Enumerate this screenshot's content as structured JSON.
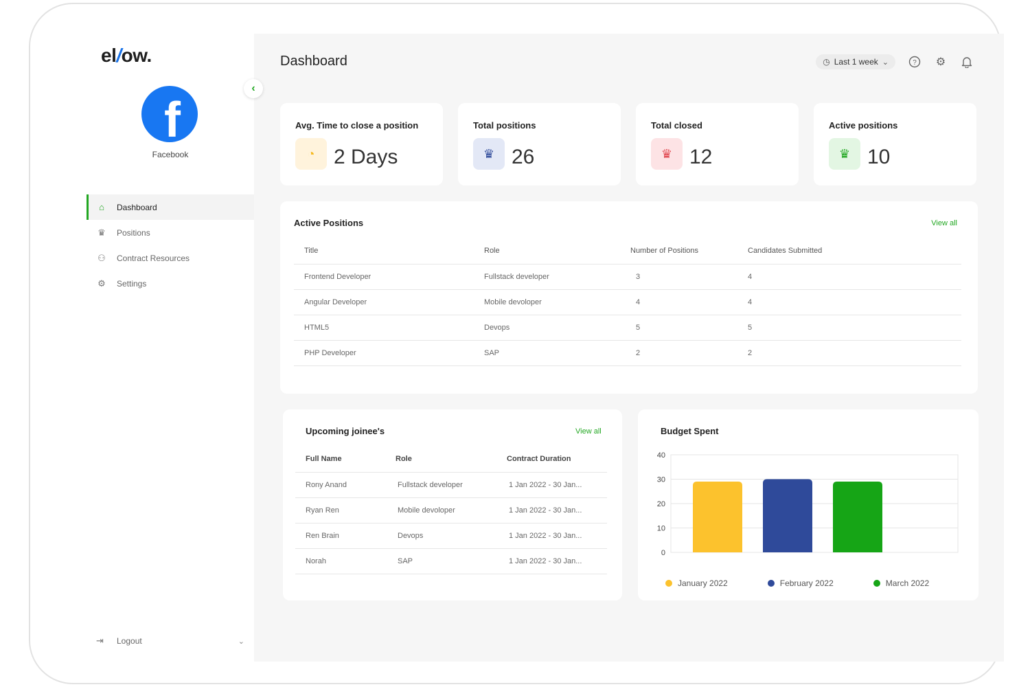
{
  "brand": {
    "pre": "el",
    "slash": "/",
    "post": "ow."
  },
  "company": {
    "logo_letter": "f",
    "name": "Facebook"
  },
  "sidebar": {
    "items": [
      {
        "label": "Dashboard",
        "icon": "home-icon",
        "glyph": "⌂",
        "active": true
      },
      {
        "label": "Positions",
        "icon": "crown-icon",
        "glyph": "♛",
        "active": false
      },
      {
        "label": "Contract Resources",
        "icon": "users-icon",
        "glyph": "⚇",
        "active": false
      },
      {
        "label": "Settings",
        "icon": "gear-icon",
        "glyph": "⚙",
        "active": false
      }
    ],
    "logout": "Logout"
  },
  "header": {
    "title": "Dashboard",
    "range": "Last 1 week"
  },
  "stats": [
    {
      "label": "Avg. Time to close a position",
      "value": "2 Days",
      "icon": "clock-icon",
      "glyph": "◔",
      "color": "#f5b81c",
      "bg": "#fff3dc"
    },
    {
      "label": "Total positions",
      "value": "26",
      "icon": "crown-icon",
      "glyph": "♛",
      "color": "#2f4a9a",
      "bg": "#e3e8f6"
    },
    {
      "label": "Total closed",
      "value": "12",
      "icon": "crown-icon",
      "glyph": "♛",
      "color": "#e0464e",
      "bg": "#fde3e5"
    },
    {
      "label": "Active positions",
      "value": "10",
      "icon": "crown-icon",
      "glyph": "♛",
      "color": "#22a722",
      "bg": "#e3f6e3"
    }
  ],
  "active_positions": {
    "title": "Active Positions",
    "view_all": "View all",
    "columns": [
      "Title",
      "Role",
      "Number of Positions",
      "Candidates Submitted"
    ],
    "rows": [
      [
        "Frontend Developer",
        "Fullstack developer",
        "3",
        "4"
      ],
      [
        "Angular Developer",
        "Mobile devoloper",
        "4",
        "4"
      ],
      [
        "HTML5",
        "Devops",
        "5",
        "5"
      ],
      [
        "PHP Developer",
        "SAP",
        "2",
        "2"
      ]
    ]
  },
  "upcoming": {
    "title": "Upcoming joinee's",
    "view_all": "View all",
    "columns": [
      "Full Name",
      "Role",
      "Contract Duration"
    ],
    "rows": [
      [
        "Rony Anand",
        "Fullstack developer",
        "1 Jan 2022 - 30 Jan..."
      ],
      [
        "Ryan Ren",
        "Mobile devoloper",
        "1 Jan 2022 - 30 Jan..."
      ],
      [
        "Ren Brain",
        "Devops",
        "1 Jan 2022 - 30 Jan..."
      ],
      [
        "Norah",
        "SAP",
        "1 Jan 2022 - 30 Jan..."
      ]
    ]
  },
  "budget": {
    "title": "Budget Spent"
  },
  "chart_data": {
    "type": "bar",
    "title": "Budget Spent",
    "categories": [
      "January 2022",
      "February 2022",
      "March 2022"
    ],
    "values": [
      29,
      30,
      29
    ],
    "colors": [
      "#fcc22d",
      "#2f4a9a",
      "#16a516"
    ],
    "yticks": [
      0,
      10,
      20,
      30,
      40
    ],
    "ylim": [
      0,
      40
    ],
    "grid": true,
    "legend": "bottom"
  }
}
